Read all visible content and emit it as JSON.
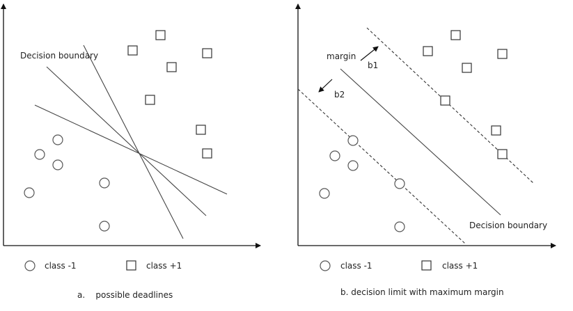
{
  "panel_a": {
    "label": "Decision boundary",
    "caption": "a.    possible deadlines",
    "legend": {
      "class_neg": "class -1",
      "class_pos": "class +1"
    }
  },
  "panel_b": {
    "margin_label": "margin",
    "b1_label": "b1",
    "b2_label": "b2",
    "boundary_label": "Decision boundary",
    "caption": "b. decision limit with maximum margin",
    "legend": {
      "class_neg": "class -1",
      "class_pos": "class +1"
    }
  },
  "colors": {
    "ink": "#222222",
    "circle_stroke": "#555555",
    "square_stroke": "#333333"
  }
}
